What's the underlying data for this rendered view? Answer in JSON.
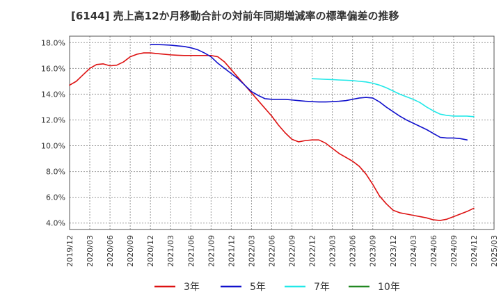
{
  "chart_data": {
    "type": "line",
    "title": "[6144]  売上高12か月移動合計の対前年同期増減率の標準偏差の推移",
    "xlabel": "",
    "ylabel": "",
    "ylim": [
      3.5,
      18.5
    ],
    "y_ticks": [
      "4.0%",
      "6.0%",
      "8.0%",
      "10.0%",
      "12.0%",
      "14.0%",
      "16.0%",
      "18.0%"
    ],
    "y_tick_values": [
      4,
      6,
      8,
      10,
      12,
      14,
      16,
      18
    ],
    "x_ticks": [
      "2019/12",
      "2020/03",
      "2020/06",
      "2020/09",
      "2020/12",
      "2021/03",
      "2021/06",
      "2021/09",
      "2021/12",
      "2022/03",
      "2022/06",
      "2022/09",
      "2022/12",
      "2023/03",
      "2023/06",
      "2023/09",
      "2023/12",
      "2024/03",
      "2024/06",
      "2024/09",
      "2024/12",
      "2025/03"
    ],
    "grid": true,
    "legend_position": "bottom",
    "series": [
      {
        "name": "3年",
        "color": "#dd1111",
        "start_month_index": 0,
        "values": [
          14.7,
          15.0,
          15.5,
          16.0,
          16.3,
          16.35,
          16.2,
          16.25,
          16.5,
          16.9,
          17.1,
          17.2,
          17.2,
          17.15,
          17.1,
          17.05,
          17.02,
          17.0,
          17.0,
          17.0,
          17.0,
          17.0,
          16.9,
          16.5,
          15.9,
          15.3,
          14.7,
          14.1,
          13.5,
          12.9,
          12.3,
          11.6,
          11.0,
          10.5,
          10.3,
          10.4,
          10.45,
          10.45,
          10.2,
          9.8,
          9.4,
          9.1,
          8.8,
          8.4,
          7.8,
          7.0,
          6.1,
          5.5,
          5.0,
          4.8,
          4.7,
          4.6,
          4.5,
          4.4,
          4.25,
          4.2,
          4.3,
          4.5,
          4.7,
          4.9,
          5.15
        ]
      },
      {
        "name": "5年",
        "color": "#1111cc",
        "start_month_index": 12,
        "values": [
          17.85,
          17.85,
          17.83,
          17.8,
          17.75,
          17.7,
          17.6,
          17.45,
          17.2,
          16.9,
          16.4,
          16.0,
          15.6,
          15.2,
          14.7,
          14.2,
          13.9,
          13.65,
          13.6,
          13.6,
          13.6,
          13.55,
          13.5,
          13.45,
          13.42,
          13.4,
          13.4,
          13.42,
          13.45,
          13.5,
          13.6,
          13.7,
          13.75,
          13.7,
          13.4,
          13.0,
          12.65,
          12.3,
          12.0,
          11.75,
          11.5,
          11.25,
          10.95,
          10.65,
          10.6,
          10.6,
          10.55,
          10.45
        ]
      },
      {
        "name": "7年",
        "color": "#22e8e8",
        "start_month_index": 36,
        "values": [
          15.2,
          15.18,
          15.15,
          15.13,
          15.1,
          15.08,
          15.05,
          15.0,
          14.95,
          14.85,
          14.7,
          14.5,
          14.25,
          14.0,
          13.8,
          13.6,
          13.35,
          13.0,
          12.7,
          12.45,
          12.35,
          12.3,
          12.3,
          12.3,
          12.25
        ]
      },
      {
        "name": "10年",
        "color": "#228822",
        "start_month_index": 0,
        "values": []
      }
    ]
  }
}
